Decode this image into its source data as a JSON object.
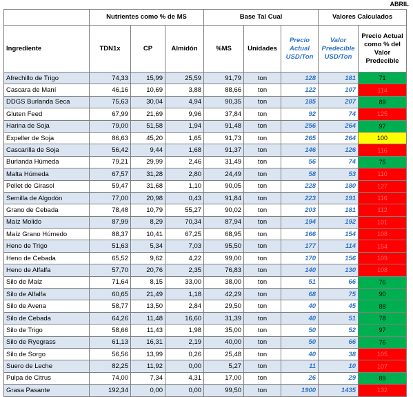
{
  "month": "ABRIL",
  "groups": {
    "nutrientes": "Nutrientes como % de MS",
    "base": "Base Tal Cual",
    "valores": "Valores Calculados"
  },
  "headers": {
    "ingrediente": "Ingrediente",
    "tdn": "TDN1x",
    "cp": "CP",
    "almidon": "Almidón",
    "ms": "%MS",
    "unidades": "Unidades",
    "precio_actual": "Precio Actual USD/Ton",
    "valor_predecible": "Valor Predecible USD/Ton",
    "precio_pct": "Precio Actual como % del Valor Predecible"
  },
  "colors": {
    "red": "#ff0000",
    "green": "#00b050",
    "yellow": "#ffff00",
    "blue_text": "#2e74c6",
    "row_shade": "#dbe5f1"
  },
  "rows": [
    {
      "name": "Afrechillo de Trigo",
      "tdn": "74,33",
      "cp": "15,99",
      "alm": "25,59",
      "ms": "91,79",
      "unit": "ton",
      "precio": "128",
      "valor": "181",
      "pct": "71",
      "color": "green"
    },
    {
      "name": "Cascara de Maní",
      "tdn": "46,16",
      "cp": "10,69",
      "alm": "3,88",
      "ms": "88,66",
      "unit": "ton",
      "precio": "122",
      "valor": "107",
      "pct": "114",
      "color": "red"
    },
    {
      "name": "DDGS Burlanda Seca",
      "tdn": "75,63",
      "cp": "30,04",
      "alm": "4,94",
      "ms": "90,35",
      "unit": "ton",
      "precio": "185",
      "valor": "207",
      "pct": "89",
      "color": "green"
    },
    {
      "name": "Gluten Feed",
      "tdn": "67,99",
      "cp": "21,69",
      "alm": "9,96",
      "ms": "37,84",
      "unit": "ton",
      "precio": "92",
      "valor": "74",
      "pct": "125",
      "color": "red"
    },
    {
      "name": "Harina de Soja",
      "tdn": "79,00",
      "cp": "51,58",
      "alm": "1,94",
      "ms": "91,48",
      "unit": "ton",
      "precio": "256",
      "valor": "264",
      "pct": "97",
      "color": "green"
    },
    {
      "name": "Expeller de Soja",
      "tdn": "86,63",
      "cp": "45,20",
      "alm": "1,65",
      "ms": "91,73",
      "unit": "ton",
      "precio": "265",
      "valor": "264",
      "pct": "100",
      "color": "yellow"
    },
    {
      "name": "Cascarilla de Soja",
      "tdn": "56,42",
      "cp": "9,44",
      "alm": "1,68",
      "ms": "91,37",
      "unit": "ton",
      "precio": "146",
      "valor": "126",
      "pct": "116",
      "color": "red"
    },
    {
      "name": "Burlanda Húmeda",
      "tdn": "79,21",
      "cp": "29,99",
      "alm": "2,46",
      "ms": "31,49",
      "unit": "ton",
      "precio": "56",
      "valor": "74",
      "pct": "75",
      "color": "green"
    },
    {
      "name": "Malta Húmeda",
      "tdn": "67,57",
      "cp": "31,28",
      "alm": "2,80",
      "ms": "24,49",
      "unit": "ton",
      "precio": "58",
      "valor": "53",
      "pct": "110",
      "color": "red"
    },
    {
      "name": "Pellet de Girasol",
      "tdn": "59,47",
      "cp": "31,68",
      "alm": "1,10",
      "ms": "90,05",
      "unit": "ton",
      "precio": "228",
      "valor": "180",
      "pct": "127",
      "color": "red"
    },
    {
      "name": "Semilla de Algodón",
      "tdn": "77,00",
      "cp": "20,98",
      "alm": "0,43",
      "ms": "91,84",
      "unit": "ton",
      "precio": "223",
      "valor": "191",
      "pct": "116",
      "color": "red"
    },
    {
      "name": "Grano de Cebada",
      "tdn": "78,48",
      "cp": "10,79",
      "alm": "55,27",
      "ms": "90,02",
      "unit": "ton",
      "precio": "203",
      "valor": "181",
      "pct": "112",
      "color": "red"
    },
    {
      "name": "Maíz Molido",
      "tdn": "87,99",
      "cp": "8,29",
      "alm": "70,34",
      "ms": "87,94",
      "unit": "ton",
      "precio": "194",
      "valor": "192",
      "pct": "101",
      "color": "red"
    },
    {
      "name": "Maíz Grano Húmedo",
      "tdn": "88,37",
      "cp": "10,41",
      "alm": "67,25",
      "ms": "68,95",
      "unit": "ton",
      "precio": "166",
      "valor": "154",
      "pct": "108",
      "color": "red"
    },
    {
      "name": "Heno de Trigo",
      "tdn": "51,63",
      "cp": "5,34",
      "alm": "7,03",
      "ms": "95,50",
      "unit": "ton",
      "precio": "177",
      "valor": "114",
      "pct": "154",
      "color": "red"
    },
    {
      "name": "Heno de Cebada",
      "tdn": "65,52",
      "cp": "9,62",
      "alm": "4,22",
      "ms": "99,00",
      "unit": "ton",
      "precio": "170",
      "valor": "156",
      "pct": "109",
      "color": "red"
    },
    {
      "name": "Heno de Alfalfa",
      "tdn": "57,70",
      "cp": "20,76",
      "alm": "2,35",
      "ms": "76,83",
      "unit": "ton",
      "precio": "140",
      "valor": "130",
      "pct": "108",
      "color": "red"
    },
    {
      "name": "Silo de Maíz",
      "tdn": "71,64",
      "cp": "8,15",
      "alm": "33,00",
      "ms": "38,00",
      "unit": "ton",
      "precio": "51",
      "valor": "66",
      "pct": "76",
      "color": "green"
    },
    {
      "name": "Silo de Alfalfa",
      "tdn": "60,65",
      "cp": "21,49",
      "alm": "1,18",
      "ms": "42,29",
      "unit": "ton",
      "precio": "68",
      "valor": "75",
      "pct": "90",
      "color": "green"
    },
    {
      "name": "Silo de Avena",
      "tdn": "58,77",
      "cp": "13,50",
      "alm": "2,84",
      "ms": "29,50",
      "unit": "ton",
      "precio": "40",
      "valor": "45",
      "pct": "88",
      "color": "green"
    },
    {
      "name": "Silo de Cebada",
      "tdn": "64,26",
      "cp": "11,48",
      "alm": "16,60",
      "ms": "31,39",
      "unit": "ton",
      "precio": "40",
      "valor": "51",
      "pct": "78",
      "color": "green"
    },
    {
      "name": "Silo de Trigo",
      "tdn": "58,66",
      "cp": "11,43",
      "alm": "1,98",
      "ms": "35,00",
      "unit": "ton",
      "precio": "50",
      "valor": "52",
      "pct": "97",
      "color": "green"
    },
    {
      "name": "Silo de Ryegrass",
      "tdn": "61,13",
      "cp": "16,31",
      "alm": "2,19",
      "ms": "40,00",
      "unit": "ton",
      "precio": "50",
      "valor": "66",
      "pct": "76",
      "color": "green"
    },
    {
      "name": "Silo de Sorgo",
      "tdn": "56,56",
      "cp": "13,99",
      "alm": "0,26",
      "ms": "25,48",
      "unit": "ton",
      "precio": "40",
      "valor": "38",
      "pct": "105",
      "color": "red"
    },
    {
      "name": "Suero de Leche",
      "tdn": "82,25",
      "cp": "11,92",
      "alm": "0,00",
      "ms": "5,27",
      "unit": "ton",
      "precio": "11",
      "valor": "10",
      "pct": "107",
      "color": "red"
    },
    {
      "name": "Pulpa de Citrus",
      "tdn": "74,00",
      "cp": "7,34",
      "alm": "4,31",
      "ms": "17,00",
      "unit": "ton",
      "precio": "26",
      "valor": "29",
      "pct": "89",
      "color": "green"
    },
    {
      "name": "Grasa Pasante",
      "tdn": "192,34",
      "cp": "0,00",
      "alm": "0,00",
      "ms": "99,50",
      "unit": "ton",
      "precio": "1900",
      "valor": "1435",
      "pct": "132",
      "color": "red"
    }
  ]
}
